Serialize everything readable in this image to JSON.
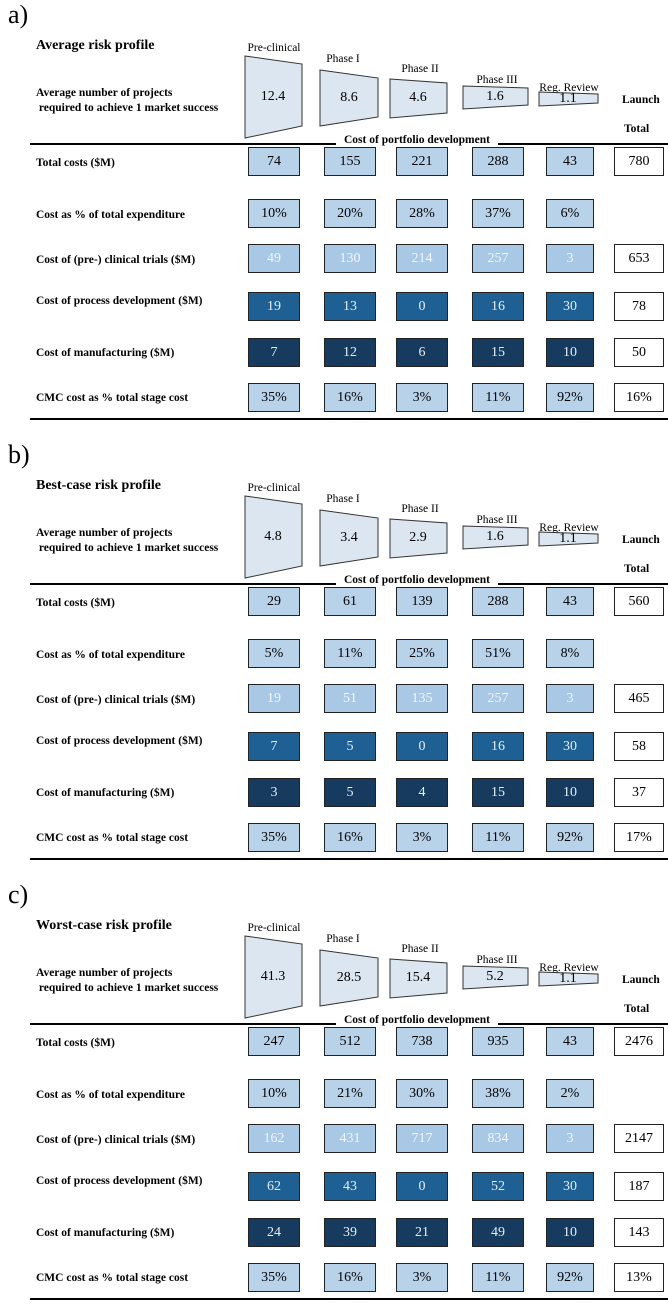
{
  "stages": [
    "Pre-clinical",
    "Phase I",
    "Phase II",
    "Phase III",
    "Reg. Review"
  ],
  "requirement_label_line1": "Average number of projects",
  "requirement_label_line2": "required to achieve 1 market success",
  "launch_label": "Launch",
  "total_label": "Total",
  "cost_portfolio_label": "Cost of portfolio development",
  "row_labels": [
    "Total costs ($M)",
    "Cost as % of total expenditure",
    "Cost of (pre-) clinical trials ($M)",
    "Cost of process development ($M)",
    "Cost of manufacturing ($M)",
    "CMC cost as % total stage cost"
  ],
  "colors": {
    "light": "#b8d2ea",
    "light_white_text": "#a8c8e6",
    "mid": "#1e5f94",
    "dark": "#163b5f"
  },
  "panels": [
    {
      "letter": "a)",
      "title": "Average risk profile",
      "projects": [
        "12.4",
        "8.6",
        "4.6",
        "1.6",
        "1.1"
      ],
      "rows": [
        {
          "values": [
            "74",
            "155",
            "221",
            "288",
            "43"
          ],
          "total": "780"
        },
        {
          "values": [
            "10%",
            "20%",
            "28%",
            "37%",
            "6%"
          ],
          "total": ""
        },
        {
          "values": [
            "49",
            "130",
            "214",
            "257",
            "3"
          ],
          "total": "653"
        },
        {
          "values": [
            "19",
            "13",
            "0",
            "16",
            "30"
          ],
          "total": "78"
        },
        {
          "values": [
            "7",
            "12",
            "6",
            "15",
            "10"
          ],
          "total": "50"
        },
        {
          "values": [
            "35%",
            "16%",
            "3%",
            "11%",
            "92%"
          ],
          "total": "16%"
        }
      ]
    },
    {
      "letter": "b)",
      "title": "Best-case risk profile",
      "projects": [
        "4.8",
        "3.4",
        "2.9",
        "1.6",
        "1.1"
      ],
      "rows": [
        {
          "values": [
            "29",
            "61",
            "139",
            "288",
            "43"
          ],
          "total": "560"
        },
        {
          "values": [
            "5%",
            "11%",
            "25%",
            "51%",
            "8%"
          ],
          "total": ""
        },
        {
          "values": [
            "19",
            "51",
            "135",
            "257",
            "3"
          ],
          "total": "465"
        },
        {
          "values": [
            "7",
            "5",
            "0",
            "16",
            "30"
          ],
          "total": "58"
        },
        {
          "values": [
            "3",
            "5",
            "4",
            "15",
            "10"
          ],
          "total": "37"
        },
        {
          "values": [
            "35%",
            "16%",
            "3%",
            "11%",
            "92%"
          ],
          "total": "17%"
        }
      ]
    },
    {
      "letter": "c)",
      "title": "Worst-case risk profile",
      "projects": [
        "41.3",
        "28.5",
        "15.4",
        "5.2",
        "1.1"
      ],
      "rows": [
        {
          "values": [
            "247",
            "512",
            "738",
            "935",
            "43"
          ],
          "total": "2476"
        },
        {
          "values": [
            "10%",
            "21%",
            "30%",
            "38%",
            "2%"
          ],
          "total": ""
        },
        {
          "values": [
            "162",
            "431",
            "717",
            "834",
            "3"
          ],
          "total": "2147"
        },
        {
          "values": [
            "62",
            "43",
            "0",
            "52",
            "30"
          ],
          "total": "187"
        },
        {
          "values": [
            "24",
            "39",
            "21",
            "49",
            "10"
          ],
          "total": "143"
        },
        {
          "values": [
            "35%",
            "16%",
            "3%",
            "11%",
            "92%"
          ],
          "total": "13%"
        }
      ]
    }
  ]
}
